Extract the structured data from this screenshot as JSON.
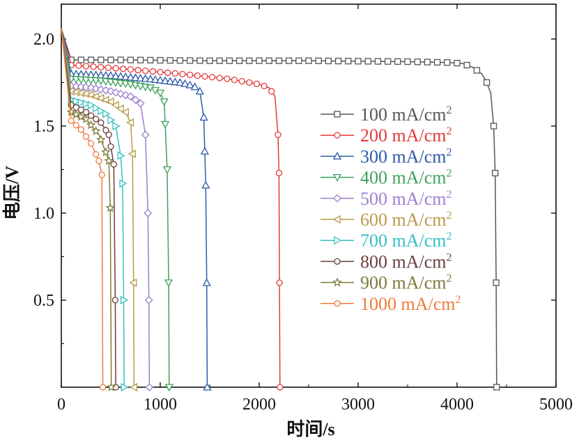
{
  "chart_data": {
    "type": "line",
    "title": "",
    "xlabel": "时间/s",
    "ylabel": "电压/V",
    "xlim": [
      0,
      5000
    ],
    "ylim": [
      0,
      2.2
    ],
    "xticks": [
      0,
      1000,
      2000,
      3000,
      4000,
      5000
    ],
    "xtick_labels": [
      "0",
      "1000",
      "2000",
      "3000",
      "4000",
      "5000"
    ],
    "yticks": [
      0.5,
      1.0,
      1.5,
      2.0
    ],
    "ytick_labels": [
      "0.5",
      "1.0",
      "1.5",
      "2.0"
    ],
    "grid": false,
    "legend_position": "right",
    "unit_superscript": "2",
    "series": [
      {
        "name": "100 mA/cm",
        "color": "#555555",
        "marker": "square",
        "x": [
          0,
          100,
          600,
          1500,
          2500,
          3500,
          3900,
          4050,
          4150,
          4250,
          4300,
          4340,
          4370,
          4385,
          4395,
          4400
        ],
        "y": [
          2.06,
          1.88,
          1.88,
          1.875,
          1.875,
          1.87,
          1.865,
          1.86,
          1.84,
          1.8,
          1.75,
          1.69,
          1.5,
          1.23,
          0.6,
          0.0
        ]
      },
      {
        "name": "200 mA/cm",
        "color": "#e23a3a",
        "marker": "circle",
        "x": [
          0,
          100,
          600,
          1200,
          1700,
          2000,
          2100,
          2160,
          2190,
          2200,
          2205,
          2210
        ],
        "y": [
          2.06,
          1.85,
          1.83,
          1.8,
          1.77,
          1.74,
          1.72,
          1.67,
          1.45,
          1.23,
          0.6,
          0.0
        ]
      },
      {
        "name": "300 mA/cm",
        "color": "#2b5ba8",
        "marker": "triangle-up",
        "x": [
          0,
          100,
          500,
          900,
          1200,
          1340,
          1400,
          1440,
          1460,
          1470,
          1475
        ],
        "y": [
          2.06,
          1.8,
          1.79,
          1.77,
          1.75,
          1.73,
          1.7,
          1.55,
          1.16,
          0.6,
          0.0
        ]
      },
      {
        "name": "400 mA/cm",
        "color": "#3ea05a",
        "marker": "triangle-down",
        "x": [
          0,
          100,
          400,
          700,
          900,
          1000,
          1040,
          1070,
          1085,
          1090
        ],
        "y": [
          2.06,
          1.77,
          1.76,
          1.74,
          1.72,
          1.69,
          1.64,
          1.25,
          0.6,
          0.0
        ]
      },
      {
        "name": "500 mA/cm",
        "color": "#9b7fcf",
        "marker": "diamond",
        "x": [
          0,
          100,
          300,
          500,
          700,
          800,
          850,
          875,
          885,
          890
        ],
        "y": [
          2.06,
          1.73,
          1.72,
          1.7,
          1.67,
          1.63,
          1.45,
          1.0,
          0.5,
          0.0
        ]
      },
      {
        "name": "600 mA/cm",
        "color": "#b89a4a",
        "marker": "triangle-left",
        "x": [
          0,
          100,
          300,
          500,
          650,
          700,
          720,
          730,
          735
        ],
        "y": [
          2.06,
          1.7,
          1.68,
          1.64,
          1.58,
          1.52,
          1.34,
          0.6,
          0.0
        ]
      },
      {
        "name": "700 mA/cm",
        "color": "#35c0c4",
        "marker": "triangle-right",
        "x": [
          0,
          100,
          300,
          450,
          550,
          600,
          620,
          630,
          635
        ],
        "y": [
          2.06,
          1.65,
          1.62,
          1.57,
          1.5,
          1.33,
          1.17,
          0.5,
          0.0
        ]
      },
      {
        "name": "800 mA/cm",
        "color": "#6b3d3d",
        "marker": "circle",
        "x": [
          0,
          100,
          250,
          400,
          480,
          530,
          545,
          550
        ],
        "y": [
          2.06,
          1.62,
          1.58,
          1.52,
          1.45,
          1.28,
          0.5,
          0.0
        ]
      },
      {
        "name": "900 mA/cm",
        "color": "#7d7a3a",
        "marker": "star",
        "x": [
          0,
          100,
          250,
          380,
          450,
          480,
          495,
          505
        ],
        "y": [
          2.06,
          1.58,
          1.54,
          1.45,
          1.35,
          1.3,
          1.03,
          0.0
        ]
      },
      {
        "name": "1000 mA/cm",
        "color": "#f07a3a",
        "marker": "circle",
        "x": [
          0,
          100,
          200,
          300,
          380,
          410,
          420
        ],
        "y": [
          2.06,
          1.53,
          1.48,
          1.4,
          1.3,
          1.22,
          0.0
        ]
      }
    ]
  }
}
